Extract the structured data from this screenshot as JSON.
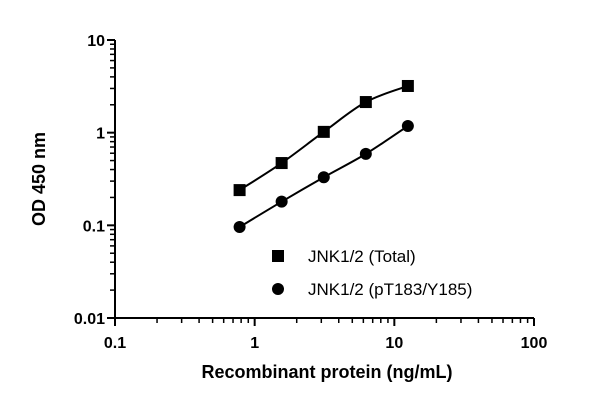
{
  "chart_data": {
    "type": "scatter",
    "title": "",
    "xlabel": "Recombinant protein (ng/mL)",
    "ylabel": "OD 450 nm",
    "xscale": "log",
    "yscale": "log",
    "xlim": [
      0.1,
      100
    ],
    "ylim": [
      0.01,
      10
    ],
    "x_ticks": [
      "0.1",
      "1",
      "10",
      "100"
    ],
    "y_ticks": [
      "0.01",
      "0.1",
      "1",
      "10"
    ],
    "grid": false,
    "legend_position": "lower right inside plot",
    "fit_curves": true,
    "x": [
      0.78,
      1.56,
      3.125,
      6.25,
      12.5
    ],
    "series": [
      {
        "name": "JNK1/2 (Total)",
        "marker": "square",
        "values": [
          0.24,
          0.47,
          1.02,
          2.14,
          3.19
        ]
      },
      {
        "name": "JNK1/2 (pT183/Y185)",
        "marker": "circle",
        "values": [
          0.096,
          0.18,
          0.33,
          0.59,
          1.18
        ]
      }
    ]
  },
  "legend": {
    "items": [
      {
        "label": "JNK1/2 (Total)",
        "marker": "square"
      },
      {
        "label": "JNK1/2 (pT183/Y185)",
        "marker": "circle"
      }
    ]
  },
  "axes": {
    "x_title": "Recombinant protein (ng/mL)",
    "y_title": "OD 450 nm"
  },
  "colors": {
    "ink": "#000000",
    "background": "#ffffff"
  }
}
